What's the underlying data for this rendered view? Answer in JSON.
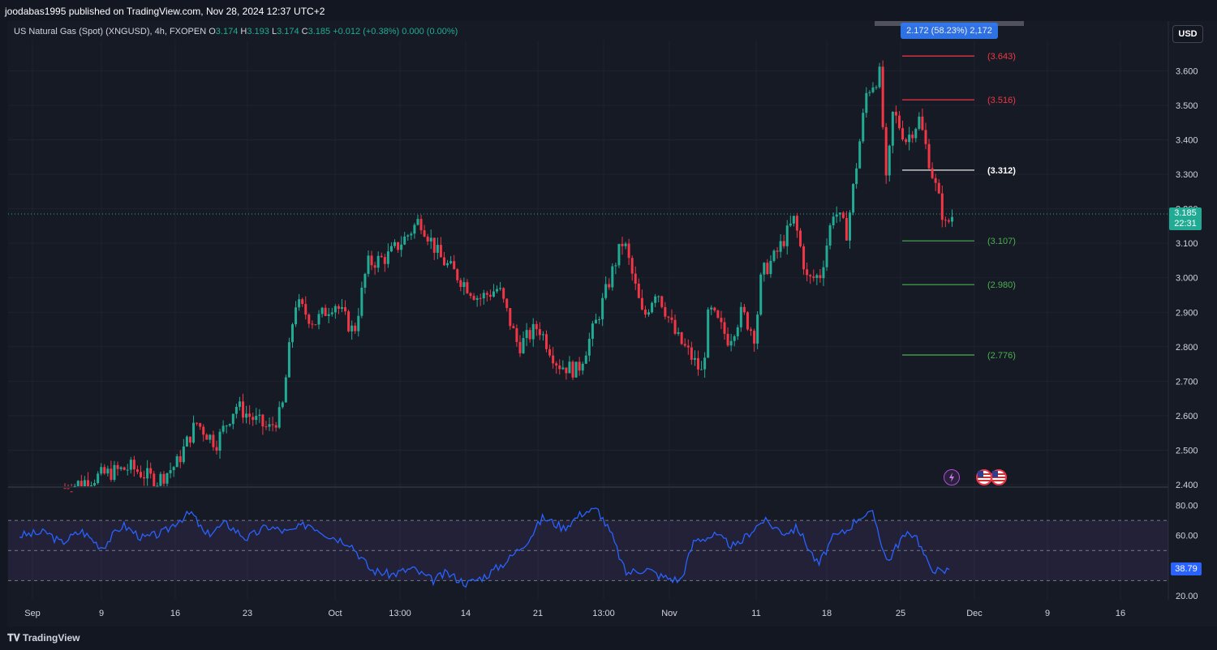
{
  "header": {
    "published_by": "joodabas1995 published on TradingView.com, Nov 28, 2024 12:37 UTC+2"
  },
  "legend": {
    "symbol": "US Natural Gas (Spot) (XNGUSD), 4h, FXOPEN",
    "o_label": "O",
    "o": "3.174",
    "h_label": "H",
    "h": "3.193",
    "l_label": "L",
    "l": "3.174",
    "c_label": "C",
    "c": "3.185",
    "change": "+0.012 (+0.38%)",
    "extra": "0.000 (0.00%)"
  },
  "currency_button": "USD",
  "measure_label": "2.172 (58.23%) 2,172",
  "last_price": {
    "price": "3.185",
    "countdown": "22:31"
  },
  "rsi_value": "38.79",
  "footer": {
    "brand": "TradingView"
  },
  "colors": {
    "up": "#22ab94",
    "down": "#f23645",
    "rsi": "#2962ff",
    "bg": "#131722",
    "fib_red": "#f23645",
    "fib_green": "#4caf50"
  },
  "icons": {
    "lightning": "lightning-icon",
    "flag_a": "us-flag-icon",
    "flag_b": "us-flag-icon"
  },
  "chart_data": {
    "type": "candlestick",
    "timeframe": "4h",
    "y_ticks": [
      "3.600",
      "3.500",
      "3.400",
      "3.300",
      "3.200",
      "3.100",
      "3.000",
      "2.900",
      "2.800",
      "2.700",
      "2.600",
      "2.500",
      "2.400"
    ],
    "ylim": [
      2.4,
      3.64
    ],
    "x_ticks": [
      "Sep",
      "9",
      "16",
      "23",
      "Oct",
      "13:00",
      "14",
      "21",
      "13:00",
      "Nov",
      "11",
      "18",
      "25",
      "Dec",
      "9",
      "16"
    ],
    "close_path": [
      [
        0,
        2.39
      ],
      [
        6,
        2.43
      ],
      [
        10,
        2.45
      ],
      [
        14,
        2.41
      ],
      [
        17,
        2.46
      ],
      [
        20,
        2.58
      ],
      [
        23,
        2.52
      ],
      [
        26,
        2.63
      ],
      [
        28,
        2.6
      ],
      [
        31,
        2.56
      ],
      [
        33,
        2.61
      ],
      [
        35,
        2.93
      ],
      [
        38,
        2.87
      ],
      [
        41,
        2.93
      ],
      [
        44,
        2.84
      ],
      [
        46,
        3.04
      ],
      [
        49,
        3.06
      ],
      [
        52,
        3.12
      ],
      [
        54,
        3.17
      ],
      [
        57,
        3.06
      ],
      [
        60,
        3.0
      ],
      [
        63,
        2.94
      ],
      [
        66,
        2.97
      ],
      [
        69,
        2.8
      ],
      [
        72,
        2.86
      ],
      [
        75,
        2.75
      ],
      [
        78,
        2.73
      ],
      [
        81,
        2.88
      ],
      [
        84,
        3.06
      ],
      [
        85,
        3.11
      ],
      [
        88,
        2.88
      ],
      [
        90,
        2.97
      ],
      [
        93,
        2.83
      ],
      [
        95,
        2.78
      ],
      [
        97,
        2.72
      ],
      [
        98,
        2.91
      ],
      [
        101,
        2.82
      ],
      [
        103,
        2.9
      ],
      [
        105,
        2.83
      ],
      [
        106,
        3.01
      ],
      [
        108,
        3.06
      ],
      [
        111,
        3.17
      ],
      [
        113,
        2.99
      ],
      [
        115,
        3.01
      ],
      [
        117,
        3.2
      ],
      [
        119,
        3.13
      ],
      [
        122,
        3.54
      ],
      [
        124,
        3.59
      ],
      [
        125,
        3.26
      ],
      [
        126,
        3.48
      ],
      [
        128,
        3.4
      ],
      [
        130,
        3.46
      ],
      [
        132,
        3.3
      ],
      [
        134,
        3.15
      ],
      [
        135,
        3.18
      ]
    ],
    "levels": [
      {
        "label": "(3.643)",
        "value": 3.643,
        "color": "red"
      },
      {
        "label": "(3.516)",
        "value": 3.516,
        "color": "red"
      },
      {
        "label": "(3.312)",
        "value": 3.312,
        "color": "white"
      },
      {
        "label": "(3.107)",
        "value": 3.107,
        "color": "green"
      },
      {
        "label": "(2.980)",
        "value": 2.98,
        "color": "green"
      },
      {
        "label": "(2.776)",
        "value": 2.776,
        "color": "green"
      }
    ],
    "rsi": {
      "y_ticks": [
        "80.00",
        "60.00",
        "40.00",
        "20.00"
      ],
      "ylim": [
        16,
        83
      ],
      "upper_band": 70,
      "mid": 50,
      "lower_band": 30,
      "path": [
        [
          0,
          60
        ],
        [
          4,
          62
        ],
        [
          6,
          55
        ],
        [
          9,
          63
        ],
        [
          12,
          52
        ],
        [
          15,
          67
        ],
        [
          18,
          58
        ],
        [
          21,
          62
        ],
        [
          23,
          70
        ],
        [
          25,
          75
        ],
        [
          27,
          60
        ],
        [
          30,
          68
        ],
        [
          33,
          58
        ],
        [
          36,
          66
        ],
        [
          39,
          62
        ],
        [
          42,
          68
        ],
        [
          45,
          60
        ],
        [
          48,
          55
        ],
        [
          51,
          37
        ],
        [
          54,
          34
        ],
        [
          57,
          38
        ],
        [
          60,
          30
        ],
        [
          62,
          35
        ],
        [
          65,
          28
        ],
        [
          68,
          34
        ],
        [
          71,
          44
        ],
        [
          74,
          58
        ],
        [
          76,
          72
        ],
        [
          79,
          65
        ],
        [
          82,
          76
        ],
        [
          84,
          77
        ],
        [
          86,
          60
        ],
        [
          88,
          35
        ],
        [
          91,
          38
        ],
        [
          93,
          33
        ],
        [
          96,
          30
        ],
        [
          98,
          57
        ],
        [
          101,
          60
        ],
        [
          104,
          52
        ],
        [
          106,
          62
        ],
        [
          108,
          70
        ],
        [
          111,
          62
        ],
        [
          113,
          65
        ],
        [
          116,
          40
        ],
        [
          118,
          58
        ],
        [
          120,
          63
        ],
        [
          122,
          73
        ],
        [
          124,
          74
        ],
        [
          126,
          42
        ],
        [
          128,
          58
        ],
        [
          130,
          62
        ],
        [
          132,
          40
        ],
        [
          134,
          35
        ],
        [
          135,
          38
        ]
      ]
    }
  }
}
